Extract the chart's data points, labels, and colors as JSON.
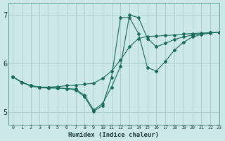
{
  "background_color": "#cce8ea",
  "grid_color": "#aacccc",
  "line_color": "#1a6b5a",
  "xlabel": "Humidex (Indice chaleur)",
  "xlim": [
    -0.5,
    23
  ],
  "ylim": [
    4.75,
    7.25
  ],
  "yticks": [
    5,
    6,
    7
  ],
  "xticks": [
    0,
    1,
    2,
    3,
    4,
    5,
    6,
    7,
    8,
    9,
    10,
    11,
    12,
    13,
    14,
    15,
    16,
    17,
    18,
    19,
    20,
    21,
    22,
    23
  ],
  "series1_x": [
    0,
    1,
    2,
    3,
    4,
    5,
    6,
    7,
    8,
    9,
    10,
    11,
    12,
    13,
    14,
    15,
    16,
    17,
    18,
    19,
    20,
    21,
    22,
    23
  ],
  "series1_y": [
    5.73,
    5.62,
    5.55,
    5.52,
    5.52,
    5.53,
    5.55,
    5.56,
    5.58,
    5.6,
    5.7,
    5.85,
    6.08,
    6.35,
    6.52,
    6.56,
    6.57,
    6.58,
    6.59,
    6.61,
    6.62,
    6.63,
    6.64,
    6.65
  ],
  "series2_x": [
    0,
    1,
    2,
    3,
    4,
    5,
    6,
    7,
    8,
    9,
    10,
    11,
    12,
    13,
    14,
    15,
    16,
    17,
    18,
    19,
    20,
    21,
    22,
    23
  ],
  "series2_y": [
    5.73,
    5.62,
    5.55,
    5.52,
    5.51,
    5.5,
    5.49,
    5.48,
    5.35,
    5.05,
    5.18,
    5.52,
    5.95,
    7.0,
    6.95,
    6.52,
    6.35,
    6.42,
    6.5,
    6.55,
    6.59,
    6.62,
    6.64,
    6.65
  ],
  "series3_x": [
    0,
    1,
    2,
    3,
    4,
    5,
    6,
    7,
    8,
    9,
    10,
    11,
    12,
    13,
    14,
    15,
    16,
    17,
    18,
    19,
    20,
    21,
    22,
    23
  ],
  "series3_y": [
    5.73,
    5.62,
    5.54,
    5.51,
    5.5,
    5.5,
    5.49,
    5.46,
    5.32,
    5.02,
    5.14,
    5.72,
    6.95,
    6.95,
    6.62,
    5.92,
    5.85,
    6.05,
    6.28,
    6.44,
    6.55,
    6.6,
    6.63,
    6.65
  ]
}
